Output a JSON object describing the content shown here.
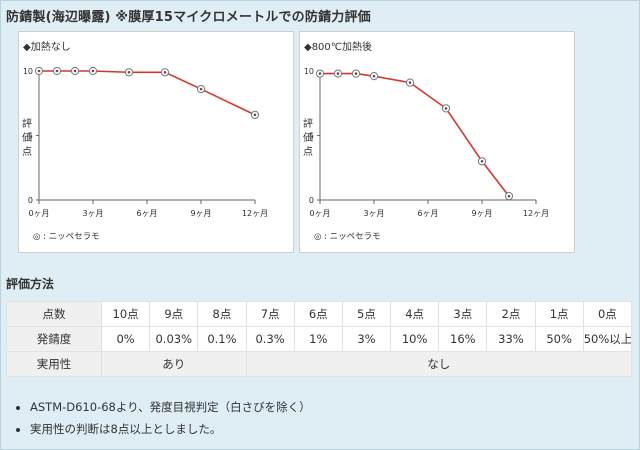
{
  "heading": "防錆製(海辺曝露) ※膜厚15マイクロメートルでの防錆力評価",
  "chart_data": [
    {
      "type": "line",
      "title": "◆加熱なし",
      "ylabel": "評価点",
      "x_ticks": [
        "0ヶ月",
        "3ヶ月",
        "6ヶ月",
        "9ヶ月",
        "12ヶ月"
      ],
      "xlim": [
        0,
        12
      ],
      "y_ticks": [
        0,
        5,
        10
      ],
      "ylim": [
        0,
        10
      ],
      "series": [
        {
          "name": "ニッペセラモ",
          "color": "#d9352a",
          "x": [
            0,
            1,
            2,
            3,
            5,
            7,
            9,
            12
          ],
          "y": [
            10,
            10,
            10,
            10,
            9.9,
            9.9,
            8.6,
            6.6
          ]
        }
      ],
      "legend": "◎ : ニッペセラモ",
      "legend_position": "bottom-left"
    },
    {
      "type": "line",
      "title": "◆800℃加熱後",
      "ylabel": "評価点",
      "x_ticks": [
        "0ヶ月",
        "3ヶ月",
        "6ヶ月",
        "9ヶ月",
        "12ヶ月"
      ],
      "xlim": [
        0,
        12
      ],
      "y_ticks": [
        0,
        5,
        10
      ],
      "ylim": [
        0,
        10
      ],
      "series": [
        {
          "name": "ニッペセラモ",
          "color": "#d9352a",
          "x": [
            0,
            1,
            2,
            3,
            5,
            7,
            9,
            10.5
          ],
          "y": [
            9.8,
            9.8,
            9.8,
            9.6,
            9.1,
            7.1,
            3.0,
            0.3
          ]
        }
      ],
      "legend": "◎ : ニッペセラモ",
      "legend_position": "bottom-left"
    }
  ],
  "evaluation": {
    "title": "評価方法",
    "table": {
      "score_label": "点数",
      "rust_label": "発錆度",
      "practical_label": "実用性",
      "scores": [
        "10点",
        "9点",
        "8点",
        "7点",
        "6点",
        "5点",
        "4点",
        "3点",
        "2点",
        "1点",
        "0点"
      ],
      "rust": [
        "0%",
        "0.03%",
        "0.1%",
        "0.3%",
        "1%",
        "3%",
        "10%",
        "16%",
        "33%",
        "50%",
        "50%以上"
      ],
      "practical_yes": "あり",
      "practical_no": "なし"
    },
    "notes": [
      "ASTM-D610-68より、発度目視判定（白さびを除く）",
      "実用性の判断は8点以上としました。"
    ]
  },
  "colors": {
    "line": "#d9352a",
    "background": "#dfeef5",
    "grid": "#cfcfcf"
  }
}
